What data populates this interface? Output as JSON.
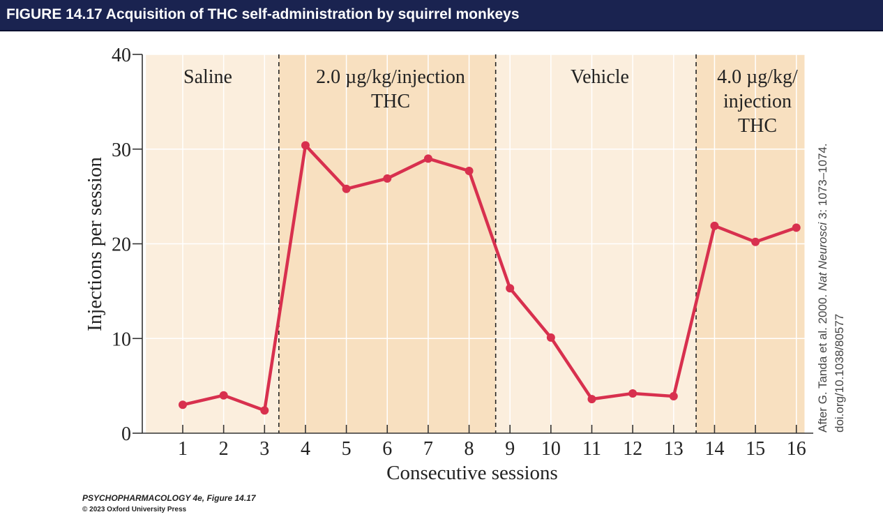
{
  "header": {
    "title": "FIGURE 14.17  Acquisition of THC self-administration by squirrel monkeys"
  },
  "chart_data": {
    "type": "line",
    "title": "Acquisition of THC self-administration by squirrel monkeys",
    "xlabel": "Consecutive sessions",
    "ylabel": "Injections per session",
    "x": [
      1,
      2,
      3,
      4,
      5,
      6,
      7,
      8,
      9,
      10,
      11,
      12,
      13,
      14,
      15,
      16
    ],
    "values": [
      3.0,
      4.0,
      2.4,
      30.4,
      25.8,
      26.9,
      29.0,
      27.7,
      15.3,
      10.1,
      3.6,
      4.2,
      3.9,
      21.9,
      20.2,
      21.7
    ],
    "xlim": [
      0.1,
      16.2
    ],
    "ylim": [
      0,
      40
    ],
    "yticks": [
      0,
      10,
      20,
      30,
      40
    ],
    "xticks": [
      1,
      2,
      3,
      4,
      5,
      6,
      7,
      8,
      9,
      10,
      11,
      12,
      13,
      14,
      15,
      16
    ],
    "grid": true,
    "phases": [
      {
        "label_lines": [
          "Saline"
        ],
        "x_start": 0.1,
        "x_end": 3.35,
        "shade": "light"
      },
      {
        "label_lines": [
          "2.0 µg/kg/injection",
          "THC"
        ],
        "x_start": 3.35,
        "x_end": 8.65,
        "shade": "dark"
      },
      {
        "label_lines": [
          "Vehicle"
        ],
        "x_start": 8.65,
        "x_end": 13.55,
        "shade": "light"
      },
      {
        "label_lines": [
          "4.0 µg/kg/",
          "injection",
          "THC"
        ],
        "x_start": 13.55,
        "x_end": 16.2,
        "shade": "dark"
      }
    ],
    "phase_dividers": [
      3.35,
      8.65,
      13.55
    ],
    "colors": {
      "line": "#d8304e",
      "light_band": "#fbeedd",
      "dark_band": "#f8e0c0",
      "grid": "#ffffff",
      "axis": "#333333"
    },
    "source_note": {
      "line1_prefix": "After G. Tanda et al. 2000. ",
      "line1_journal": "Nat Neurosci",
      "line1_suffix": " 3: 1073–1074.",
      "line2": "doi.org/10.1038/80577"
    }
  },
  "footer": {
    "book_credit": "PSYCHOPHARMACOLOGY 4e, Figure 14.17",
    "copyright": "© 2023 Oxford University Press"
  }
}
